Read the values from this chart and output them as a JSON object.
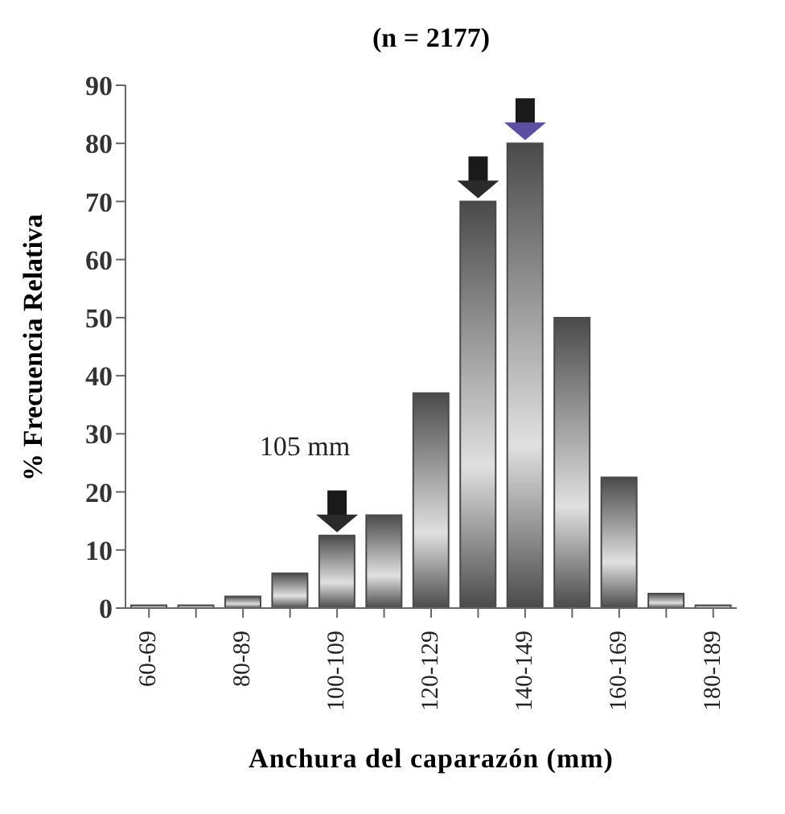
{
  "chart_data": {
    "type": "bar",
    "title": "(n = 2177)",
    "xlabel": "Anchura del caparazón (mm)",
    "ylabel": "% Frecuencia Relativa",
    "categories": [
      "60-69",
      null,
      "80-89",
      null,
      "100-109",
      null,
      "120-129",
      null,
      "140-149",
      null,
      "160-169",
      null,
      "180-189"
    ],
    "values": [
      0.5,
      0.5,
      2,
      6,
      12.5,
      16,
      37,
      70,
      80,
      50,
      22.5,
      2.5,
      0.5
    ],
    "color": "#4a4a4a",
    "ylim": [
      0,
      90
    ],
    "yticks": [
      0,
      10,
      20,
      30,
      40,
      50,
      60,
      70,
      80,
      90
    ],
    "grid": false,
    "annotations": [
      "105 mm"
    ]
  }
}
